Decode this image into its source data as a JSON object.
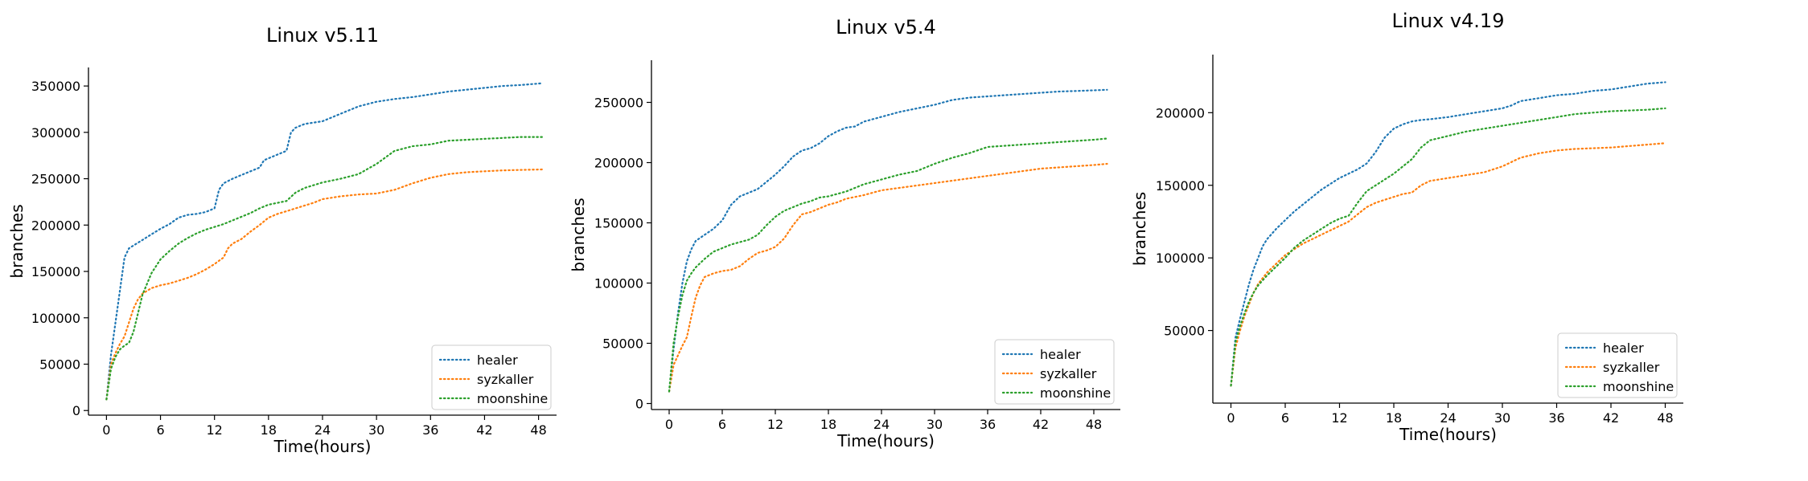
{
  "chart_data": [
    {
      "type": "line",
      "title": "Linux v5.11",
      "xlabel": "Time(hours)",
      "ylabel": "branches",
      "xlim": [
        -2,
        50
      ],
      "ylim": [
        -5000,
        370000
      ],
      "xticks": [
        0,
        6,
        12,
        18,
        24,
        30,
        36,
        42,
        48
      ],
      "yticks": [
        0,
        50000,
        100000,
        150000,
        200000,
        250000,
        300000,
        350000
      ],
      "ytick_labels": [
        "0",
        "50000",
        "100000",
        "150000",
        "200000",
        "250000",
        "300000",
        "350000"
      ],
      "grid": false,
      "legend": "lower-right",
      "series": [
        {
          "name": "healer",
          "color": "#1f77b4",
          "x": [
            0,
            0.5,
            1,
            1.5,
            2,
            2.5,
            3,
            4,
            5,
            6,
            7,
            8,
            9,
            10,
            11,
            12,
            12.5,
            13,
            14,
            15,
            16,
            17,
            17.5,
            18,
            19,
            20,
            20.5,
            21,
            22,
            24,
            26,
            28,
            30,
            32,
            34,
            36,
            38,
            40,
            42,
            44,
            46,
            48.5
          ],
          "y": [
            12000,
            60000,
            95000,
            130000,
            165000,
            175000,
            178000,
            184000,
            190000,
            196000,
            201000,
            208000,
            211000,
            212000,
            214000,
            218000,
            238000,
            245000,
            250000,
            254000,
            258000,
            262000,
            270000,
            272000,
            276000,
            280000,
            300000,
            305000,
            309000,
            312000,
            320000,
            328000,
            333000,
            336000,
            338000,
            341000,
            344000,
            346000,
            348000,
            350000,
            351000,
            353000
          ]
        },
        {
          "name": "syzkaller",
          "color": "#ff7f0e",
          "x": [
            0,
            0.5,
            1,
            1.5,
            2,
            2.5,
            3,
            3.5,
            4,
            5,
            6,
            7,
            8,
            9,
            10,
            11,
            12,
            13,
            13.5,
            14,
            15,
            16,
            17,
            18,
            19,
            20,
            21,
            22,
            23,
            24,
            26,
            28,
            30,
            32,
            34,
            36,
            38,
            40,
            42,
            44,
            46,
            48.5
          ],
          "y": [
            12000,
            50000,
            62000,
            72000,
            80000,
            95000,
            110000,
            120000,
            126000,
            132000,
            135000,
            137000,
            140000,
            143000,
            147000,
            152000,
            158000,
            165000,
            175000,
            180000,
            185000,
            193000,
            200000,
            208000,
            212000,
            215000,
            218000,
            221000,
            224000,
            228000,
            231000,
            233000,
            234000,
            238000,
            245000,
            251000,
            255000,
            257000,
            258000,
            259000,
            259500,
            260000
          ]
        },
        {
          "name": "moonshine",
          "color": "#2ca02c",
          "x": [
            0,
            0.5,
            1,
            1.5,
            2,
            2.5,
            3,
            3.5,
            4,
            5,
            6,
            7,
            8,
            9,
            10,
            11,
            12,
            13,
            14,
            15,
            16,
            17,
            18,
            19,
            20,
            21,
            22,
            24,
            26,
            28,
            30,
            32,
            34,
            36,
            38,
            40,
            42,
            44,
            46,
            48.5
          ],
          "y": [
            12000,
            45000,
            58000,
            66000,
            70000,
            73000,
            85000,
            105000,
            125000,
            148000,
            163000,
            172000,
            180000,
            186000,
            191000,
            195000,
            198000,
            201000,
            205000,
            209000,
            213000,
            218000,
            222000,
            224000,
            226000,
            235000,
            240000,
            246000,
            250000,
            255000,
            266000,
            280000,
            285000,
            287000,
            291000,
            292000,
            293000,
            294000,
            295000,
            295000
          ]
        }
      ]
    },
    {
      "type": "line",
      "title": "Linux v5.4",
      "xlabel": "Time(hours)",
      "ylabel": "branches",
      "xlim": [
        -2,
        51
      ],
      "ylim": [
        -5000,
        285000
      ],
      "xticks": [
        0,
        6,
        12,
        18,
        24,
        30,
        36,
        42,
        48
      ],
      "yticks": [
        0,
        50000,
        100000,
        150000,
        200000,
        250000
      ],
      "ytick_labels": [
        "0",
        "50000",
        "100000",
        "150000",
        "200000",
        "250000"
      ],
      "grid": false,
      "legend": "lower-right",
      "series": [
        {
          "name": "healer",
          "color": "#1f77b4",
          "x": [
            0,
            0.5,
            1,
            1.5,
            2,
            2.5,
            3,
            4,
            5,
            6,
            7,
            8,
            9,
            10,
            11,
            12,
            13,
            14,
            15,
            16,
            17,
            18,
            19,
            20,
            21,
            22,
            24,
            26,
            28,
            30,
            32,
            34,
            36,
            38,
            40,
            42,
            44,
            46,
            48,
            49.5
          ],
          "y": [
            10000,
            45000,
            75000,
            100000,
            118000,
            128000,
            135000,
            140000,
            145000,
            152000,
            165000,
            172000,
            175000,
            178000,
            184000,
            190000,
            197000,
            205000,
            210000,
            212000,
            216000,
            222000,
            226000,
            229000,
            230000,
            234000,
            238000,
            242000,
            245000,
            248000,
            252000,
            254000,
            255000,
            256000,
            257000,
            258000,
            259000,
            259500,
            260000,
            260500
          ]
        },
        {
          "name": "syzkaller",
          "color": "#ff7f0e",
          "x": [
            0,
            0.5,
            1,
            1.5,
            2,
            2.5,
            3,
            3.5,
            4,
            5,
            6,
            7,
            8,
            9,
            10,
            11,
            12,
            13,
            14,
            15,
            16,
            17,
            18,
            19,
            20,
            22,
            24,
            26,
            28,
            30,
            32,
            34,
            36,
            38,
            40,
            42,
            44,
            46,
            48,
            49.5
          ],
          "y": [
            10000,
            32000,
            40000,
            48000,
            55000,
            72000,
            88000,
            98000,
            105000,
            108000,
            110000,
            111000,
            114000,
            120000,
            125000,
            127000,
            130000,
            137000,
            148000,
            157000,
            159000,
            162000,
            165000,
            167000,
            170000,
            173000,
            177000,
            179000,
            181000,
            183000,
            185000,
            187000,
            189000,
            191000,
            193000,
            195000,
            196000,
            197000,
            198000,
            199000
          ]
        },
        {
          "name": "moonshine",
          "color": "#2ca02c",
          "x": [
            0,
            0.5,
            1,
            1.5,
            2,
            2.5,
            3,
            4,
            5,
            6,
            7,
            8,
            9,
            10,
            11,
            12,
            13,
            14,
            15,
            16,
            17,
            18,
            19,
            20,
            22,
            24,
            26,
            28,
            30,
            32,
            34,
            36,
            38,
            40,
            42,
            44,
            46,
            48,
            49.5
          ],
          "y": [
            10000,
            50000,
            72000,
            90000,
            102000,
            108000,
            113000,
            120000,
            126000,
            129000,
            132000,
            134000,
            136000,
            140000,
            148000,
            155000,
            160000,
            163000,
            166000,
            168000,
            171000,
            172000,
            174000,
            176000,
            182000,
            186000,
            190000,
            193000,
            199000,
            204000,
            208000,
            213000,
            214000,
            215000,
            216000,
            217000,
            218000,
            219000,
            220000
          ]
        }
      ]
    },
    {
      "type": "line",
      "title": "Linux v4.19",
      "xlabel": "Time(hours)",
      "ylabel": "branches",
      "xlim": [
        -2,
        50
      ],
      "ylim": [
        0,
        240000
      ],
      "xticks": [
        0,
        6,
        12,
        18,
        24,
        30,
        36,
        42,
        48
      ],
      "yticks": [
        50000,
        100000,
        150000,
        200000
      ],
      "ytick_labels": [
        "50000",
        "100000",
        "150000",
        "200000"
      ],
      "grid": false,
      "legend": "lower-right",
      "series": [
        {
          "name": "healer",
          "color": "#1f77b4",
          "x": [
            0,
            0.5,
            1,
            1.5,
            2,
            2.5,
            3,
            3.5,
            4,
            5,
            6,
            7,
            8,
            9,
            10,
            11,
            12,
            13,
            14,
            15,
            16,
            17,
            18,
            19,
            20,
            21,
            22,
            24,
            26,
            28,
            30,
            31,
            32,
            34,
            36,
            38,
            40,
            42,
            44,
            46,
            48
          ],
          "y": [
            12000,
            45000,
            58000,
            70000,
            82000,
            92000,
            100000,
            108000,
            113000,
            120000,
            126000,
            132000,
            137000,
            142000,
            147000,
            151000,
            155000,
            158000,
            161000,
            165000,
            173000,
            183000,
            189000,
            192000,
            194000,
            195000,
            195500,
            197000,
            199000,
            201000,
            203000,
            205000,
            208000,
            210000,
            212000,
            213000,
            215000,
            216000,
            218000,
            220000,
            221000
          ]
        },
        {
          "name": "syzkaller",
          "color": "#ff7f0e",
          "x": [
            0,
            0.5,
            1,
            1.5,
            2,
            2.5,
            3,
            4,
            5,
            6,
            7,
            8,
            9,
            10,
            11,
            12,
            13,
            14,
            15,
            16,
            17,
            18,
            19,
            20,
            21,
            22,
            24,
            26,
            28,
            30,
            32,
            34,
            36,
            38,
            40,
            42,
            44,
            46,
            48
          ],
          "y": [
            12000,
            38000,
            50000,
            60000,
            68000,
            76000,
            82000,
            90000,
            96000,
            102000,
            106000,
            110000,
            113000,
            116000,
            119000,
            122000,
            125000,
            130000,
            135000,
            138000,
            140000,
            142000,
            144000,
            145000,
            150000,
            153000,
            155000,
            157000,
            159000,
            163000,
            169000,
            172000,
            174000,
            175000,
            175500,
            176000,
            177000,
            178000,
            179000
          ]
        },
        {
          "name": "moonshine",
          "color": "#2ca02c",
          "x": [
            0,
            0.5,
            1,
            1.5,
            2,
            2.5,
            3,
            4,
            5,
            6,
            7,
            8,
            9,
            10,
            11,
            12,
            13,
            14,
            15,
            16,
            17,
            18,
            19,
            20,
            21,
            22,
            24,
            26,
            28,
            30,
            32,
            34,
            36,
            38,
            40,
            42,
            44,
            46,
            48
          ],
          "y": [
            12000,
            42000,
            53000,
            62000,
            70000,
            76000,
            81000,
            88000,
            94000,
            100000,
            107000,
            112000,
            116000,
            120000,
            124000,
            127000,
            129000,
            138000,
            146000,
            150000,
            154000,
            158000,
            163000,
            168000,
            176000,
            181000,
            184000,
            187000,
            189000,
            191000,
            193000,
            195000,
            197000,
            199000,
            200000,
            201000,
            201500,
            202000,
            203000
          ]
        }
      ]
    }
  ]
}
